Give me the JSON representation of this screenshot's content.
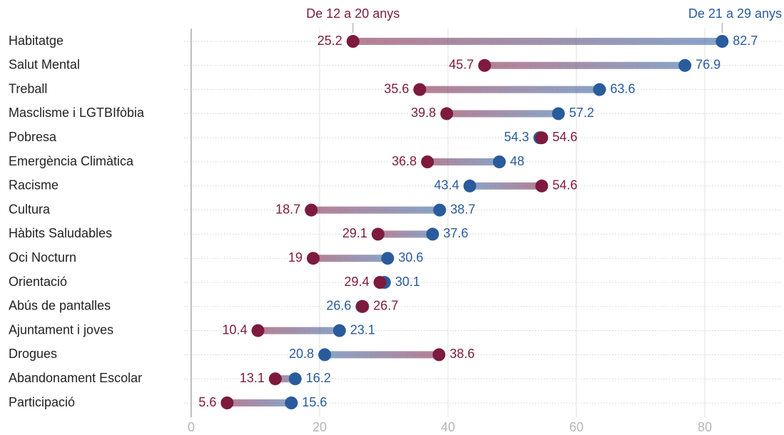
{
  "chart_data": {
    "type": "dumbbell",
    "categories": [
      "Habitatge",
      "Salut Mental",
      "Treball",
      "Masclisme i LGTBIfòbia",
      "Pobresa",
      "Emergència Climàtica",
      "Racisme",
      "Cultura",
      "Hàbits Saludables",
      "Oci Nocturn",
      "Orientació",
      "Abús de pantalles",
      "Ajuntament i joves",
      "Drogues",
      "Abandonament Escolar",
      "Participació"
    ],
    "series": [
      {
        "name": "De 12 a 20 anys",
        "color": "#7d1a3e",
        "values": [
          25.2,
          45.7,
          35.6,
          39.8,
          54.6,
          36.8,
          54.6,
          18.7,
          29.1,
          19,
          29.4,
          26.7,
          10.4,
          38.6,
          13.1,
          5.6
        ]
      },
      {
        "name": "De 21 a 29 anys",
        "color": "#2a5b9c",
        "values": [
          82.7,
          76.9,
          63.6,
          57.2,
          54.3,
          48,
          43.4,
          38.7,
          37.6,
          30.6,
          30.1,
          26.6,
          23.1,
          20.8,
          16.2,
          15.6
        ]
      }
    ],
    "xlim": [
      0,
      92
    ],
    "xticks": [
      0,
      20,
      40,
      60,
      80
    ],
    "grid": true
  }
}
